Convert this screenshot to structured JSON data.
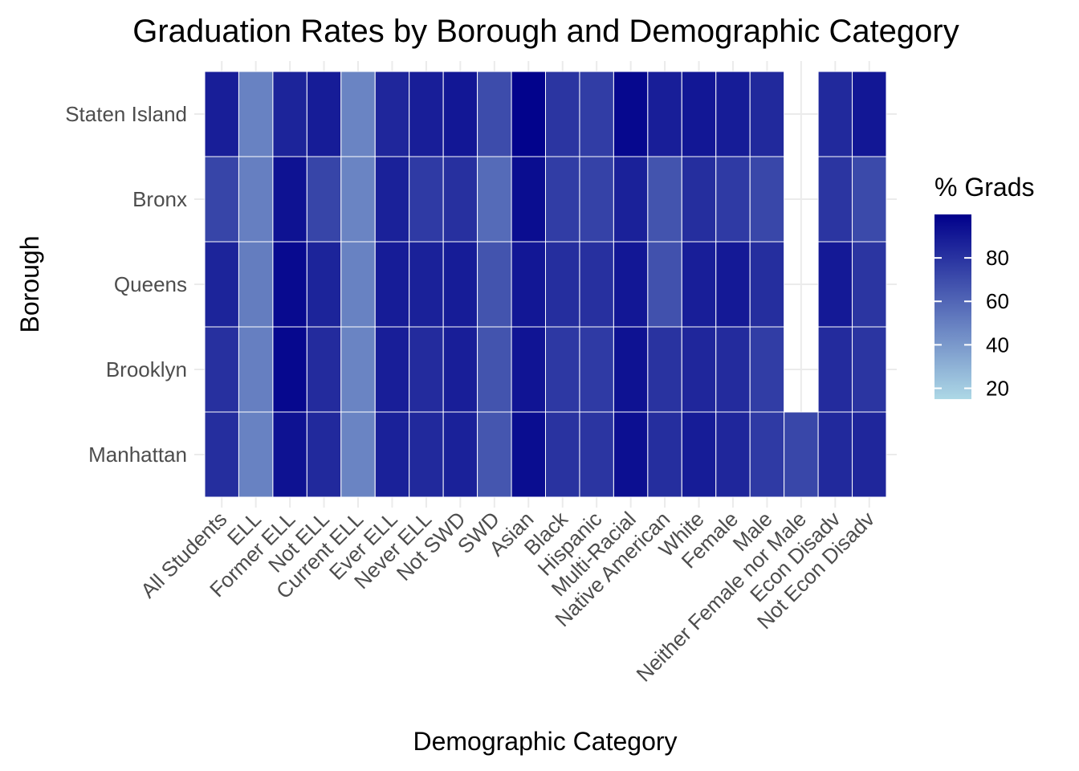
{
  "chart_data": {
    "type": "heatmap",
    "title": "Graduation Rates by Borough and Demographic Category",
    "xlabel": "Demographic Category",
    "ylabel": "Borough",
    "x_categories": [
      "All Students",
      "ELL",
      "Former ELL",
      "Not ELL",
      "Current ELL",
      "Ever ELL",
      "Never ELL",
      "Not SWD",
      "SWD",
      "Asian",
      "Black",
      "Hispanic",
      "Multi-Racial",
      "Native American",
      "White",
      "Female",
      "Male",
      "Neither Female nor Male",
      "Econ Disadv",
      "Not Econ Disadv"
    ],
    "y_categories": [
      "Manhattan",
      "Brooklyn",
      "Queens",
      "Bronx",
      "Staten Island"
    ],
    "values": [
      [
        82,
        49,
        93,
        84,
        48,
        87,
        84,
        87,
        66,
        95,
        80,
        79,
        94,
        82,
        89,
        85,
        77,
        72,
        84,
        85
      ],
      [
        81,
        50,
        97,
        83,
        48,
        88,
        83,
        88,
        67,
        92,
        78,
        77,
        93,
        80,
        85,
        83,
        76,
        null,
        83,
        79
      ],
      [
        86,
        51,
        96,
        86,
        49,
        89,
        87,
        89,
        67,
        91,
        82,
        81,
        91,
        68,
        88,
        90,
        82,
        null,
        90,
        79
      ],
      [
        73,
        50,
        93,
        73,
        48,
        87,
        77,
        81,
        58,
        95,
        76,
        74,
        87,
        67,
        82,
        77,
        72,
        null,
        79,
        71
      ],
      [
        88,
        49,
        86,
        89,
        48,
        85,
        88,
        91,
        70,
        99,
        79,
        76,
        97,
        88,
        91,
        89,
        84,
        null,
        84,
        91
      ]
    ],
    "legend": {
      "title": "% Grads",
      "ticks": [
        "80",
        "60",
        "40",
        "20"
      ],
      "tick_values": [
        80,
        60,
        40,
        20
      ],
      "range": [
        15,
        100
      ],
      "low_color": "#add8e6",
      "high_color": "#00008b",
      "placement": "right"
    },
    "grid": true
  }
}
